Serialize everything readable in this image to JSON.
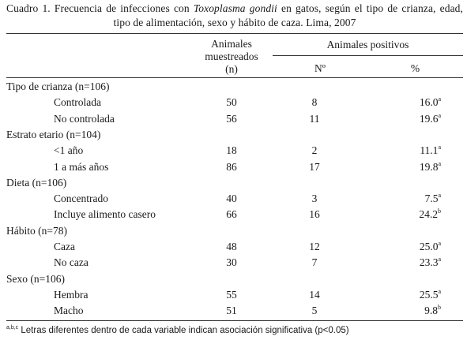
{
  "caption": {
    "prefix": "Cuadro 1. Frecuencia de infecciones con ",
    "organism": "Toxoplasma gondii",
    "suffix": " en gatos, según el tipo de crianza, edad, tipo de alimentación, sexo y hábito de caza. Lima, 2007"
  },
  "header": {
    "muestreados_line1": "Animales",
    "muestreados_line2": "muestreados",
    "muestreados_line3": "(n)",
    "positivos": "Animales positivos",
    "n": "Nº",
    "pct": "%"
  },
  "rows": [
    {
      "type": "group",
      "label": "Tipo de crianza (n=106)"
    },
    {
      "type": "item",
      "label": "Controlada",
      "n": "50",
      "pos": "8",
      "pct": "16.0",
      "sup": "a"
    },
    {
      "type": "item",
      "label": "No controlada",
      "n": "56",
      "pos": "11",
      "pct": "19.6",
      "sup": "a"
    },
    {
      "type": "group",
      "label": "Estrato etario (n=104)"
    },
    {
      "type": "item",
      "label": "<1 año",
      "n": "18",
      "pos": "2",
      "pct": "11.1",
      "sup": "a"
    },
    {
      "type": "item",
      "label": "1 a más años",
      "n": "86",
      "pos": "17",
      "pct": "19.8",
      "sup": "a"
    },
    {
      "type": "group",
      "label": "Dieta (n=106)"
    },
    {
      "type": "item",
      "label": "Concentrado",
      "n": "40",
      "pos": "3",
      "pct": "7.5",
      "sup": "a"
    },
    {
      "type": "item",
      "label": "Incluye alimento casero",
      "n": "66",
      "pos": "16",
      "pct": "24.2",
      "sup": "b"
    },
    {
      "type": "group",
      "label": "Hábito (n=78)"
    },
    {
      "type": "item",
      "label": "Caza",
      "n": "48",
      "pos": "12",
      "pct": "25.0",
      "sup": "a"
    },
    {
      "type": "item",
      "label": "No caza",
      "n": "30",
      "pos": "7",
      "pct": "23.3",
      "sup": "a"
    },
    {
      "type": "group",
      "label": "Sexo (n=106)"
    },
    {
      "type": "item",
      "label": "Hembra",
      "n": "55",
      "pos": "14",
      "pct": "25.5",
      "sup": "a"
    },
    {
      "type": "item",
      "label": "Macho",
      "n": "51",
      "pos": "5",
      "pct": "9.8",
      "sup": "b"
    }
  ],
  "footnote": {
    "sup": "a,b,c",
    "text": " Letras diferentes dentro de cada variable indican asociación significativa (p<0.05)"
  }
}
